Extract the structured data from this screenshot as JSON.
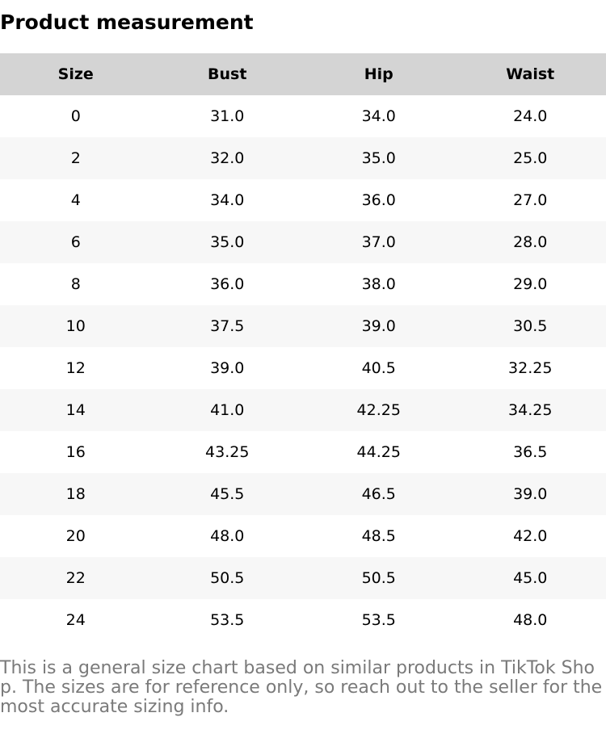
{
  "header": {
    "title": "Product measurement"
  },
  "table": {
    "columns": [
      "Size",
      "Bust",
      "Hip",
      "Waist"
    ],
    "rows": [
      [
        "0",
        "31.0",
        "34.0",
        "24.0"
      ],
      [
        "2",
        "32.0",
        "35.0",
        "25.0"
      ],
      [
        "4",
        "34.0",
        "36.0",
        "27.0"
      ],
      [
        "6",
        "35.0",
        "37.0",
        "28.0"
      ],
      [
        "8",
        "36.0",
        "38.0",
        "29.0"
      ],
      [
        "10",
        "37.5",
        "39.0",
        "30.5"
      ],
      [
        "12",
        "39.0",
        "40.5",
        "32.25"
      ],
      [
        "14",
        "41.0",
        "42.25",
        "34.25"
      ],
      [
        "16",
        "43.25",
        "44.25",
        "36.5"
      ],
      [
        "18",
        "45.5",
        "46.5",
        "39.0"
      ],
      [
        "20",
        "48.0",
        "48.5",
        "42.0"
      ],
      [
        "22",
        "50.5",
        "50.5",
        "45.0"
      ],
      [
        "24",
        "53.5",
        "53.5",
        "48.0"
      ]
    ]
  },
  "footer": {
    "note": "This is a general size chart based on similar products in TikTok Shop. The sizes are for reference only, so reach out to the seller for the most accurate sizing info."
  }
}
